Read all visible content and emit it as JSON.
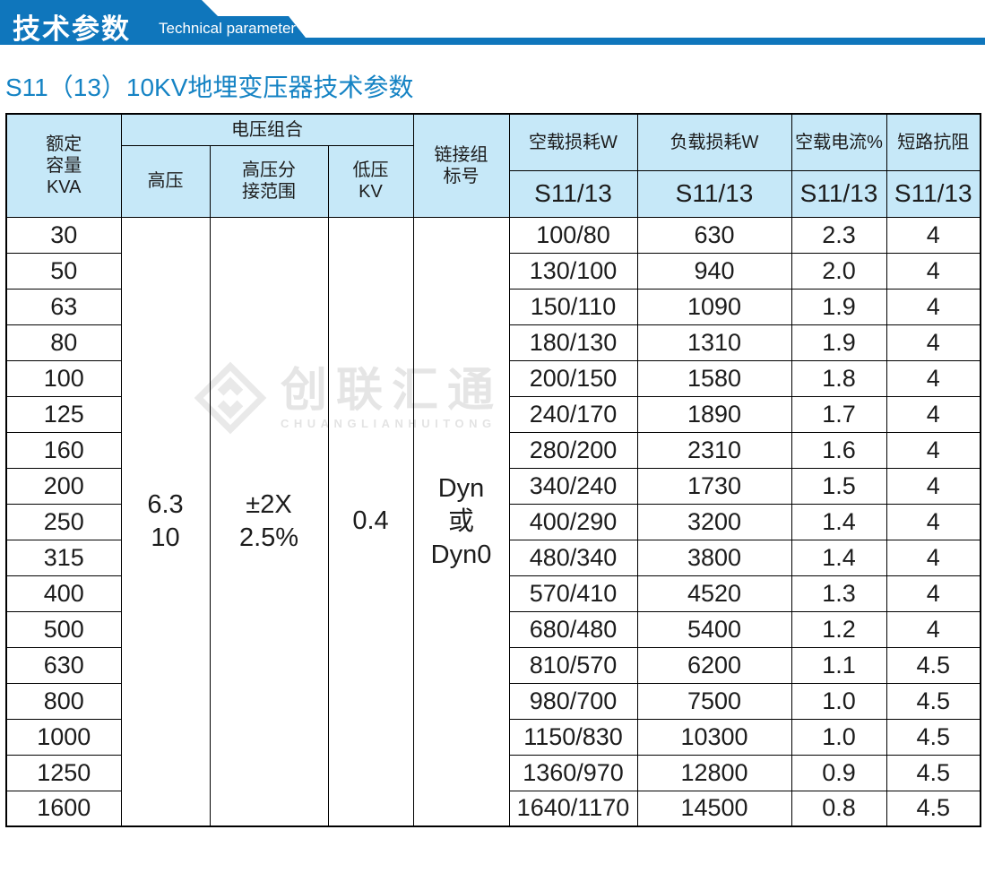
{
  "banner": {
    "title_cn": "技术参数",
    "title_en": "Technical parameter"
  },
  "page_title": "S11（13）10KV地埋变压器技术参数",
  "watermark": {
    "name_cn": "创联汇通",
    "name_en": "CHUANGLIANHUITONG"
  },
  "colors": {
    "banner_blue": "#0f76bc",
    "header_light_blue": "#c6e8f8",
    "title_blue": "#1583c4",
    "grid_line": "#000000",
    "watermark_gray": "#e4e4e4"
  },
  "table": {
    "header": {
      "col_kva_lines": [
        "额定",
        "容量",
        "KVA"
      ],
      "voltage_group": "电压组合",
      "col_hv": "高压",
      "col_tap_lines": [
        "高压分",
        "接范围"
      ],
      "col_lv_lines": [
        "低压",
        "KV"
      ],
      "col_vector_lines": [
        "链接组",
        "标号"
      ],
      "col_no_load_loss": "空载损耗W",
      "col_load_loss": "负载损耗W",
      "col_no_load_current": "空载电流%",
      "col_impedance": "短路抗阻",
      "model_label": "S11/13"
    },
    "merged": {
      "hv_lines": [
        "6.3",
        "10"
      ],
      "tap_lines": [
        "±2X",
        "2.5%"
      ],
      "lv_lines": [
        "0.4"
      ],
      "vector_lines": [
        "Dyn",
        "或",
        "Dyn0"
      ]
    },
    "rows": [
      {
        "kva": "30",
        "no_load_loss": "100/80",
        "load_loss": "630",
        "no_load_current": "2.3",
        "impedance": "4"
      },
      {
        "kva": "50",
        "no_load_loss": "130/100",
        "load_loss": "940",
        "no_load_current": "2.0",
        "impedance": "4"
      },
      {
        "kva": "63",
        "no_load_loss": "150/110",
        "load_loss": "1090",
        "no_load_current": "1.9",
        "impedance": "4"
      },
      {
        "kva": "80",
        "no_load_loss": "180/130",
        "load_loss": "1310",
        "no_load_current": "1.9",
        "impedance": "4"
      },
      {
        "kva": "100",
        "no_load_loss": "200/150",
        "load_loss": "1580",
        "no_load_current": "1.8",
        "impedance": "4"
      },
      {
        "kva": "125",
        "no_load_loss": "240/170",
        "load_loss": "1890",
        "no_load_current": "1.7",
        "impedance": "4"
      },
      {
        "kva": "160",
        "no_load_loss": "280/200",
        "load_loss": "2310",
        "no_load_current": "1.6",
        "impedance": "4"
      },
      {
        "kva": "200",
        "no_load_loss": "340/240",
        "load_loss": "1730",
        "no_load_current": "1.5",
        "impedance": "4"
      },
      {
        "kva": "250",
        "no_load_loss": "400/290",
        "load_loss": "3200",
        "no_load_current": "1.4",
        "impedance": "4"
      },
      {
        "kva": "315",
        "no_load_loss": "480/340",
        "load_loss": "3800",
        "no_load_current": "1.4",
        "impedance": "4"
      },
      {
        "kva": "400",
        "no_load_loss": "570/410",
        "load_loss": "4520",
        "no_load_current": "1.3",
        "impedance": "4"
      },
      {
        "kva": "500",
        "no_load_loss": "680/480",
        "load_loss": "5400",
        "no_load_current": "1.2",
        "impedance": "4"
      },
      {
        "kva": "630",
        "no_load_loss": "810/570",
        "load_loss": "6200",
        "no_load_current": "1.1",
        "impedance": "4.5"
      },
      {
        "kva": "800",
        "no_load_loss": "980/700",
        "load_loss": "7500",
        "no_load_current": "1.0",
        "impedance": "4.5"
      },
      {
        "kva": "1000",
        "no_load_loss": "1150/830",
        "load_loss": "10300",
        "no_load_current": "1.0",
        "impedance": "4.5"
      },
      {
        "kva": "1250",
        "no_load_loss": "1360/970",
        "load_loss": "12800",
        "no_load_current": "0.9",
        "impedance": "4.5"
      },
      {
        "kva": "1600",
        "no_load_loss": "1640/1170",
        "load_loss": "14500",
        "no_load_current": "0.8",
        "impedance": "4.5"
      }
    ]
  }
}
